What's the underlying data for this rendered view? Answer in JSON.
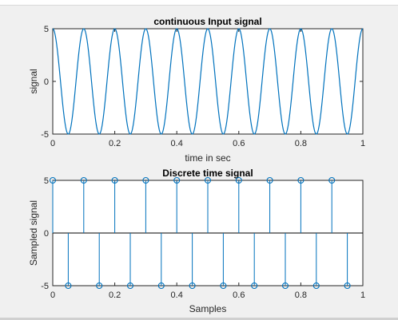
{
  "chart_data": [
    {
      "type": "line",
      "title": "continuous Input signal",
      "xlabel": "time in sec",
      "ylabel": "signal",
      "xlim": [
        0,
        1
      ],
      "ylim": [
        -5,
        5
      ],
      "xticks": [
        0,
        0.2,
        0.4,
        0.6,
        0.8,
        1
      ],
      "xtick_labels": [
        "0",
        "0.2",
        "0.4",
        "0.6",
        "0.8",
        "1"
      ],
      "yticks": [
        -5,
        0,
        5
      ],
      "ytick_labels": [
        "-5",
        "0",
        "5"
      ],
      "grid": false,
      "series": [
        {
          "function": "5*cos(2*pi*10*t)",
          "amplitude": 5,
          "frequency_hz": 10,
          "color": "#0072BD"
        }
      ]
    },
    {
      "type": "stem",
      "title": "Discrete time signal",
      "xlabel": "Samples",
      "ylabel": "Sampled signal",
      "xlim": [
        0,
        1
      ],
      "ylim": [
        -5,
        5
      ],
      "xticks": [
        0,
        0.2,
        0.4,
        0.6,
        0.8,
        1
      ],
      "xtick_labels": [
        "0",
        "0.2",
        "0.4",
        "0.6",
        "0.8",
        "1"
      ],
      "yticks": [
        -5,
        0,
        5
      ],
      "ytick_labels": [
        "-5",
        "0",
        "5"
      ],
      "grid": false,
      "series": [
        {
          "x": [
            0,
            0.05,
            0.1,
            0.15,
            0.2,
            0.25,
            0.3,
            0.35,
            0.4,
            0.45,
            0.5,
            0.55,
            0.6,
            0.65,
            0.7,
            0.75,
            0.8,
            0.85,
            0.9,
            0.95
          ],
          "y": [
            5,
            -5,
            5,
            -5,
            5,
            -5,
            5,
            -5,
            5,
            -5,
            5,
            -5,
            5,
            -5,
            5,
            -5,
            5,
            -5,
            5,
            -5
          ],
          "color": "#0072BD"
        }
      ]
    }
  ]
}
